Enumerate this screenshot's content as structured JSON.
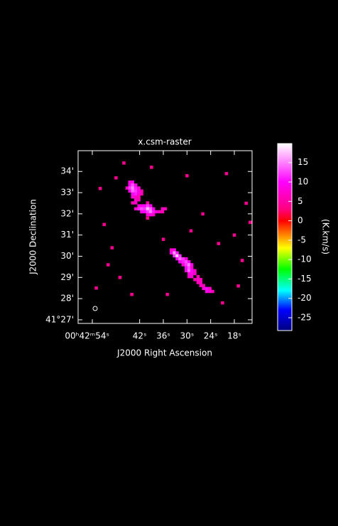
{
  "chart_data": {
    "type": "raster",
    "title": "x.csm-raster",
    "x_label": "J2000 Right Ascension",
    "y_label": "J2000 Declination",
    "colorbar_label": "(K.km/s)",
    "xlim": [
      57.6,
      13.5
    ],
    "xticks": [
      {
        "value": 54,
        "label": "00ʰ42ᵐ54ˢ"
      },
      {
        "value": 42,
        "label": "42ˢ"
      },
      {
        "value": 36,
        "label": "36ˢ"
      },
      {
        "value": 30,
        "label": "30ˢ"
      },
      {
        "value": 24,
        "label": "24ˢ"
      },
      {
        "value": 18,
        "label": "18ˢ"
      }
    ],
    "ylim": [
      26.83,
      34.98
    ],
    "yticks": [
      {
        "value": 27,
        "label": "41°27'"
      },
      {
        "value": 28,
        "label": "28'"
      },
      {
        "value": 29,
        "label": "29'"
      },
      {
        "value": 30,
        "label": "30'"
      },
      {
        "value": 31,
        "label": "31'"
      },
      {
        "value": 32,
        "label": "32'"
      },
      {
        "value": 33,
        "label": "33'"
      },
      {
        "value": 34,
        "label": "34'"
      }
    ],
    "clim": [
      -28.3,
      19.9
    ],
    "cticks": [
      -25,
      -20,
      -15,
      -10,
      -5,
      0,
      5,
      10,
      15
    ],
    "colormap": [
      [
        -28.3,
        "#000080"
      ],
      [
        -23,
        "#0000ff"
      ],
      [
        -18,
        "#00ffff"
      ],
      [
        -12.5,
        "#00ff00"
      ],
      [
        -7,
        "#ffff00"
      ],
      [
        -3.5,
        "#ff8000"
      ],
      [
        0,
        "#ff0000"
      ],
      [
        3,
        "#ff0080"
      ],
      [
        10,
        "#ff00ff"
      ],
      [
        19.9,
        "#ffffff"
      ]
    ],
    "ra": [
      44.5,
      43.8,
      44.5,
      43.8,
      43.0,
      45.2,
      44.5,
      43.8,
      43.0,
      42.2,
      44.5,
      43.8,
      43.0,
      42.2,
      41.5,
      43.8,
      43.0,
      42.2,
      41.5,
      43.8,
      43.0,
      42.2,
      43.0,
      42.2,
      43.8,
      43.0,
      40.0,
      42.2,
      41.5,
      40.8,
      40.0,
      39.2,
      43.0,
      42.2,
      41.5,
      40.8,
      40.0,
      39.2,
      38.5,
      36.2,
      35.5,
      41.5,
      40.8,
      40.0,
      39.2,
      38.5,
      37.8,
      37.0,
      36.2,
      40.0,
      39.2,
      38.5,
      34.0,
      33.2,
      34.0,
      33.2,
      32.5,
      33.2,
      32.5,
      31.8,
      32.5,
      31.8,
      31.0,
      30.2,
      31.8,
      31.0,
      30.2,
      29.5,
      31.0,
      30.2,
      29.5,
      28.8,
      30.2,
      29.5,
      28.8,
      30.2,
      29.5,
      28.8,
      28.0,
      29.5,
      28.8,
      28.0,
      29.5,
      28.8,
      27.2,
      28.0,
      27.2,
      26.5,
      27.2,
      26.5,
      26.5,
      25.8,
      25.8,
      25.0,
      24.2,
      25.0,
      24.2,
      23.5,
      52,
      51,
      49,
      47,
      53,
      39,
      30,
      20,
      15,
      18,
      22,
      16,
      44,
      35,
      17,
      48,
      26,
      36,
      50,
      21,
      46,
      29,
      40,
      14
    ],
    "dec": [
      33.5,
      33.5,
      33.36,
      33.36,
      33.36,
      33.22,
      33.22,
      33.22,
      33.22,
      33.22,
      33.08,
      33.08,
      33.08,
      33.08,
      33.08,
      32.94,
      32.94,
      32.94,
      32.94,
      32.8,
      32.8,
      32.8,
      32.66,
      32.66,
      32.52,
      32.52,
      32.52,
      32.38,
      32.38,
      32.38,
      32.38,
      32.38,
      32.24,
      32.24,
      32.24,
      32.24,
      32.24,
      32.24,
      32.24,
      32.24,
      32.24,
      32.1,
      32.1,
      32.1,
      32.1,
      32.1,
      32.1,
      32.1,
      32.1,
      31.96,
      31.96,
      31.96,
      30.3,
      30.3,
      30.16,
      30.16,
      30.16,
      30.02,
      30.02,
      30.02,
      29.88,
      29.88,
      29.88,
      29.88,
      29.74,
      29.74,
      29.74,
      29.74,
      29.6,
      29.6,
      29.6,
      29.6,
      29.46,
      29.46,
      29.46,
      29.32,
      29.32,
      29.32,
      29.32,
      29.18,
      29.18,
      29.18,
      29.04,
      29.04,
      29.04,
      28.9,
      28.9,
      28.9,
      28.76,
      28.76,
      28.62,
      28.62,
      28.48,
      28.48,
      28.48,
      28.34,
      28.34,
      28.34,
      33.2,
      31.5,
      30.4,
      29,
      28.5,
      34.2,
      33.8,
      33.9,
      32.5,
      31,
      30.6,
      29.8,
      28.2,
      28.2,
      28.6,
      33.7,
      32.0,
      30.8,
      29.6,
      27.8,
      34.4,
      31.2,
      31.8,
      31.6
    ],
    "values": [
      8,
      9,
      10,
      13,
      9,
      7,
      12,
      15,
      11,
      8,
      9,
      14,
      12,
      9,
      6,
      10,
      11,
      8,
      6,
      8,
      7,
      6,
      7,
      6,
      6,
      7,
      5,
      8,
      9,
      10,
      12,
      9,
      7,
      11,
      13,
      12,
      17,
      14,
      9,
      7,
      6,
      9,
      10,
      12,
      15,
      11,
      8,
      7,
      6,
      8,
      9,
      7,
      7,
      9,
      9,
      16,
      11,
      12,
      18,
      12,
      10,
      14,
      12,
      8,
      9,
      11,
      13,
      9,
      8,
      12,
      15,
      9,
      10,
      13,
      8,
      9,
      14,
      10,
      7,
      8,
      9,
      7,
      7,
      8,
      6,
      6,
      7,
      6,
      6,
      7,
      7,
      6,
      8,
      10,
      7,
      9,
      8,
      6,
      4,
      4,
      4,
      4,
      4,
      4,
      4,
      4,
      4,
      4,
      4,
      4,
      4,
      4,
      4,
      4,
      4,
      4,
      4,
      4,
      4,
      4,
      4,
      4
    ]
  }
}
